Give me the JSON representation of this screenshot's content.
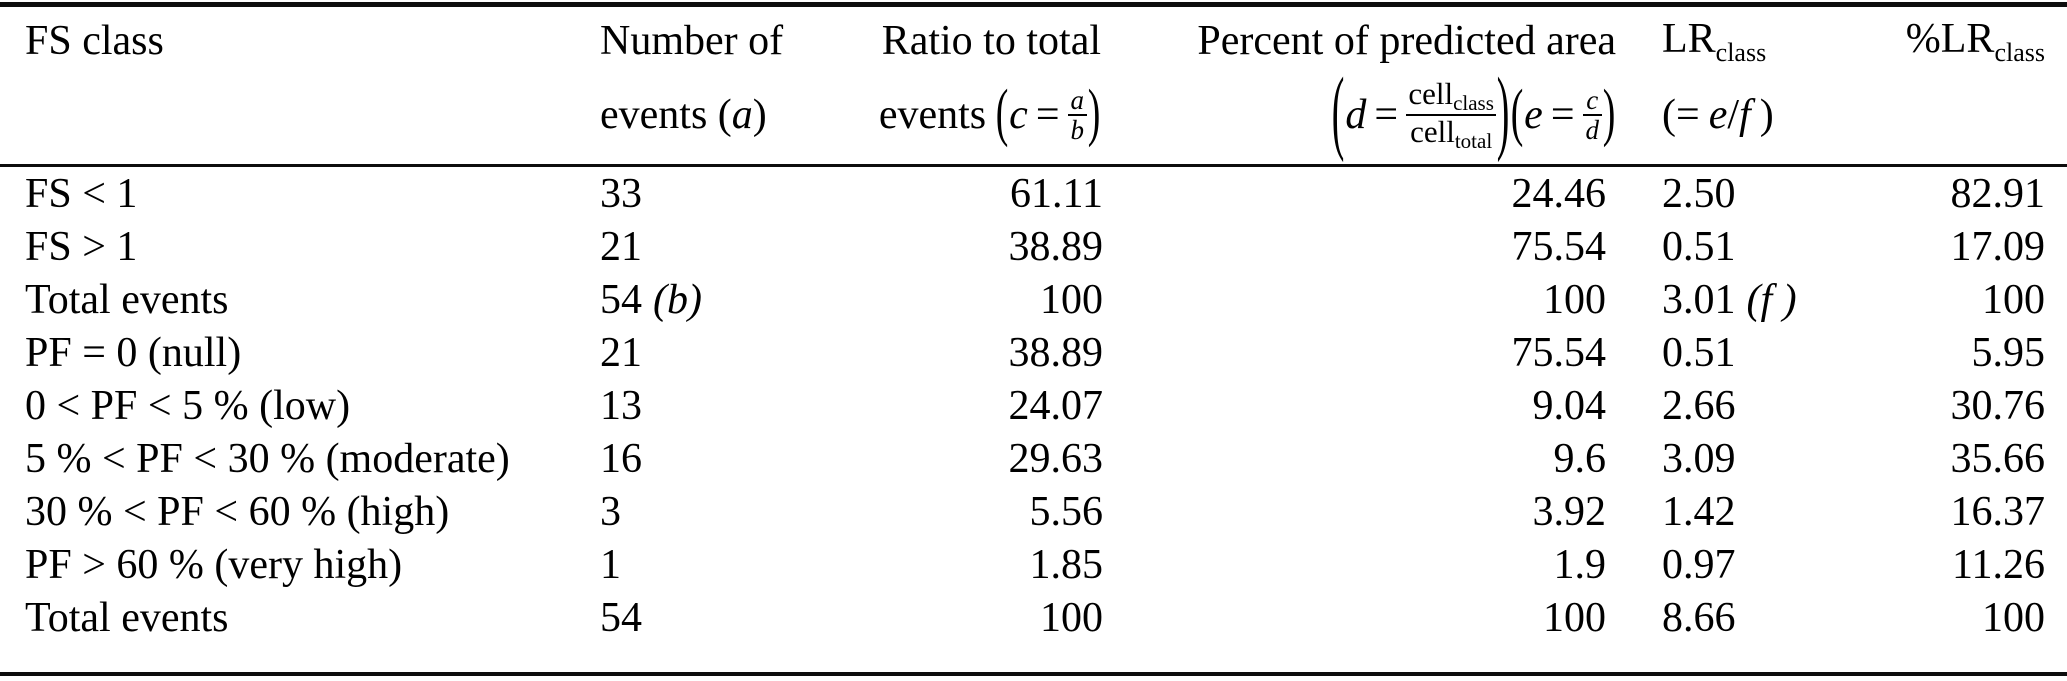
{
  "header": {
    "col1": {
      "line1": "FS class"
    },
    "col2": {
      "line1": "Number of",
      "line2_pre": "events (",
      "line2_var": "a",
      "line2_post": ")"
    },
    "col3": {
      "line1": "Ratio to total",
      "line2_pre": "events",
      "open": "(",
      "var": "c",
      "eq": "=",
      "frac_num": "a",
      "frac_den": "b",
      "close": ")"
    },
    "col4": {
      "line1": "Percent of predicted area",
      "open1": "(",
      "var1": "d",
      "eq1": "=",
      "num_base": "cell",
      "num_sub": "class",
      "den_base": "cell",
      "den_sub": "total",
      "close1": ")",
      "open2": "(",
      "var2": "e",
      "eq2": "=",
      "frac2_num": "c",
      "frac2_den": "d",
      "close2": ")"
    },
    "col5": {
      "base": "LR",
      "sub": "class",
      "open": "(=",
      "var_e": "e",
      "slash": "/",
      "var_f": "f",
      "close": ")"
    },
    "col6": {
      "pre": "%",
      "base": "LR",
      "sub": "class"
    }
  },
  "rows": [
    {
      "label": "FS < 1",
      "events": "33",
      "events_note": "",
      "ratio": "61.11",
      "area": "24.46",
      "lr": "2.50",
      "lr_note": "",
      "pct_lr": "82.91"
    },
    {
      "label": "FS > 1",
      "events": "21",
      "events_note": "",
      "ratio": "38.89",
      "area": "75.54",
      "lr": "0.51",
      "lr_note": "",
      "pct_lr": "17.09"
    },
    {
      "label": "Total events",
      "events": "54",
      "events_note": "(b)",
      "ratio": "100",
      "area": "100",
      "lr": "3.01",
      "lr_note": "(f )",
      "pct_lr": "100"
    },
    {
      "label": "PF = 0 (null)",
      "events": "21",
      "events_note": "",
      "ratio": "38.89",
      "area": "75.54",
      "lr": "0.51",
      "lr_note": "",
      "pct_lr": "5.95"
    },
    {
      "label": "0 < PF < 5 % (low)",
      "events": "13",
      "events_note": "",
      "ratio": "24.07",
      "area": "9.04",
      "lr": "2.66",
      "lr_note": "",
      "pct_lr": "30.76"
    },
    {
      "label": "5 % < PF < 30 % (moderate)",
      "events": "16",
      "events_note": "",
      "ratio": "29.63",
      "area": "9.6",
      "lr": "3.09",
      "lr_note": "",
      "pct_lr": "35.66"
    },
    {
      "label": "30 % < PF < 60 % (high)",
      "events": "3",
      "events_note": "",
      "ratio": "5.56",
      "area": "3.92",
      "lr": "1.42",
      "lr_note": "",
      "pct_lr": "16.37"
    },
    {
      "label": "PF > 60 % (very high)",
      "events": "1",
      "events_note": "",
      "ratio": "1.85",
      "area": "1.9",
      "lr": "0.97",
      "lr_note": "",
      "pct_lr": "11.26"
    },
    {
      "label": "Total events",
      "events": "54",
      "events_note": "",
      "ratio": "100",
      "area": "100",
      "lr": "8.66",
      "lr_note": "",
      "pct_lr": "100"
    }
  ]
}
